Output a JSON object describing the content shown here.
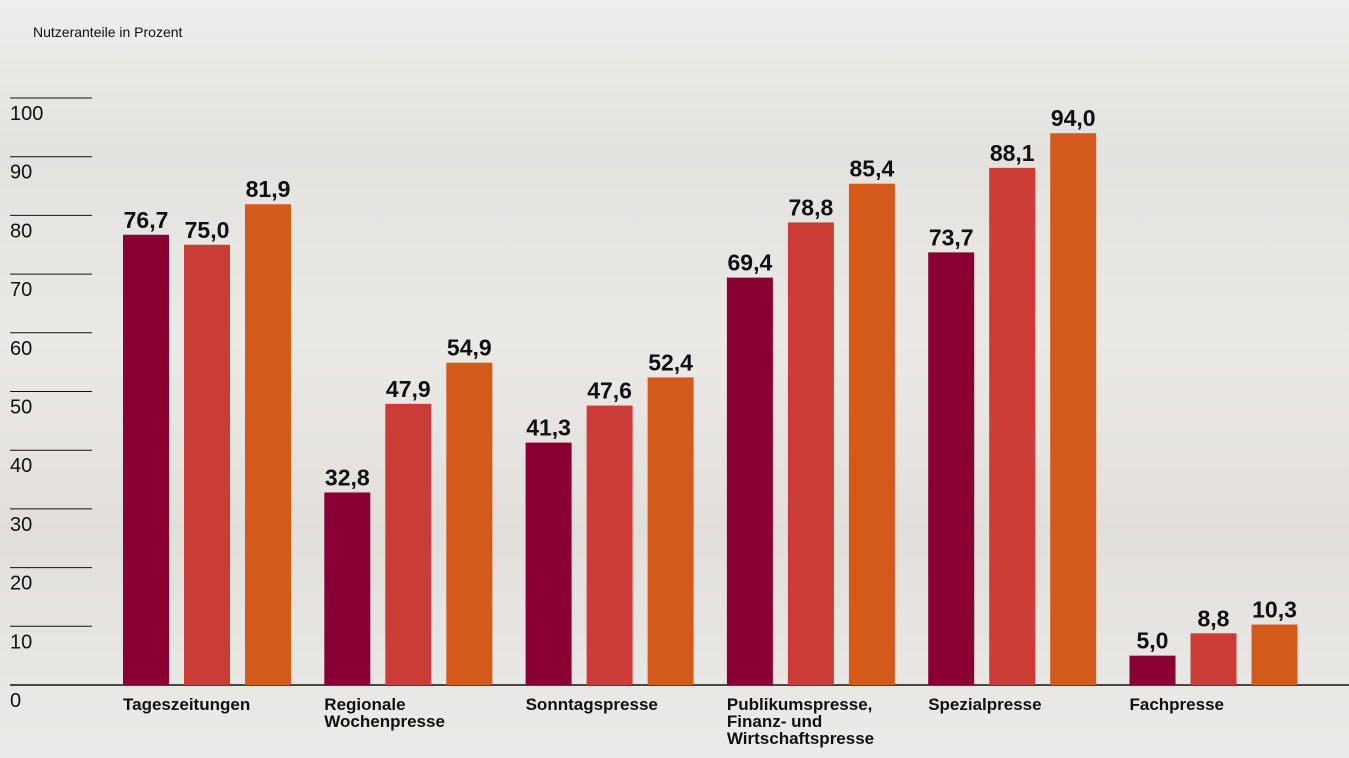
{
  "chart_data": {
    "type": "bar",
    "ylabel": "Nutzeranteile in Prozent",
    "categories": [
      "Tageszeitungen",
      "Regionale Wochenpresse",
      "Sonntagspresse",
      "Publikumspresse, Finanz- und Wirtschaftspresse",
      "Spezialpresse",
      "Fachpresse"
    ],
    "series": [
      {
        "color": "#8a0032",
        "values": [
          76.7,
          32.8,
          41.3,
          69.4,
          73.7,
          5.0
        ],
        "value_labels": [
          "76,7",
          "32,8",
          "41,3",
          "69,4",
          "73,7",
          "5,0"
        ]
      },
      {
        "color": "#cc3c37",
        "values": [
          75.0,
          47.9,
          47.6,
          78.8,
          88.1,
          8.8
        ],
        "value_labels": [
          "75,0",
          "47,9",
          "47,6",
          "78,8",
          "88,1",
          "8,8"
        ]
      },
      {
        "color": "#d35a1a",
        "values": [
          81.9,
          54.9,
          52.4,
          85.4,
          94.0,
          10.3
        ],
        "value_labels": [
          "81,9",
          "54,9",
          "52,4",
          "85,4",
          "94,0",
          "10,3"
        ]
      }
    ],
    "ylim": [
      0,
      100
    ],
    "yticks": [
      0,
      10,
      20,
      30,
      40,
      50,
      60,
      70,
      80,
      90,
      100
    ]
  }
}
